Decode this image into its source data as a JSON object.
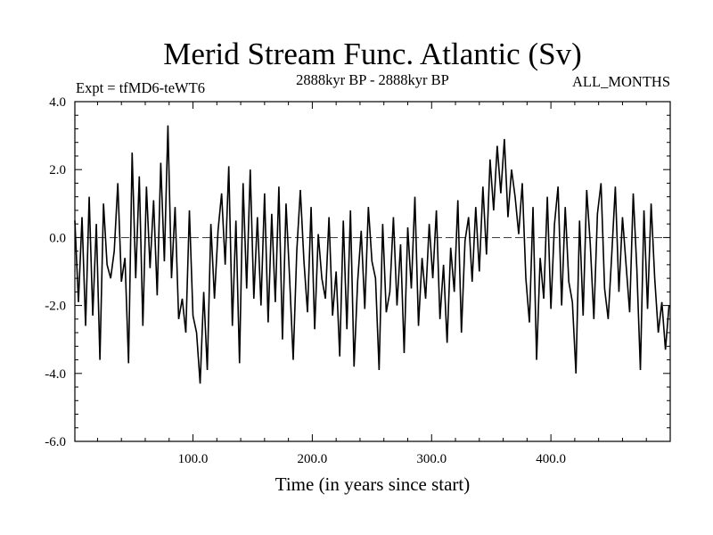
{
  "chart_data": {
    "type": "line",
    "title": "Merid Stream Func. Atlantic (Sv)",
    "subtitle_left": "Expt = tfMD6-teWT6",
    "subtitle_center": "2888kyr BP - 2888kyr BP",
    "subtitle_right": "ALL_MONTHS",
    "xlabel": "Time (in years since start)",
    "ylabel": "",
    "xlim": [
      1,
      500
    ],
    "ylim": [
      -6.0,
      4.0
    ],
    "x_ticks": [
      100,
      200,
      300,
      400
    ],
    "x_tick_labels": [
      "100.0",
      "200.0",
      "300.0",
      "400.0"
    ],
    "y_ticks": [
      -6,
      -4,
      -2,
      0,
      2,
      4
    ],
    "y_tick_labels": [
      "-6.0",
      "-4.0",
      "-2.0",
      "0.0",
      "2.0",
      "4.0"
    ],
    "zero_line": true,
    "grid": false,
    "series": [
      {
        "name": "Merid Stream Func. Atlantic",
        "x": [
          1,
          4,
          7,
          10,
          13,
          16,
          19,
          22,
          25,
          28,
          31,
          34,
          37,
          40,
          43,
          46,
          49,
          52,
          55,
          58,
          61,
          64,
          67,
          70,
          73,
          76,
          79,
          82,
          85,
          88,
          91,
          94,
          97,
          100,
          103,
          106,
          109,
          112,
          115,
          118,
          121,
          124,
          127,
          130,
          133,
          136,
          139,
          142,
          145,
          148,
          151,
          154,
          157,
          160,
          163,
          166,
          169,
          172,
          175,
          178,
          181,
          184,
          187,
          190,
          193,
          196,
          199,
          202,
          205,
          208,
          211,
          214,
          217,
          220,
          223,
          226,
          229,
          232,
          235,
          238,
          241,
          244,
          247,
          250,
          253,
          256,
          259,
          262,
          265,
          268,
          271,
          274,
          277,
          280,
          283,
          286,
          289,
          292,
          295,
          298,
          301,
          304,
          307,
          310,
          313,
          316,
          319,
          322,
          325,
          328,
          331,
          334,
          337,
          340,
          343,
          346,
          349,
          352,
          355,
          358,
          361,
          364,
          367,
          370,
          373,
          376,
          379,
          382,
          385,
          388,
          391,
          394,
          397,
          400,
          403,
          406,
          409,
          412,
          415,
          418,
          421,
          424,
          427,
          430,
          433,
          436,
          439,
          442,
          445,
          448,
          451,
          454,
          457,
          460,
          463,
          466,
          469,
          472,
          475,
          478,
          481,
          484,
          487,
          490,
          493,
          496,
          499
        ],
        "values": [
          0.5,
          -1.9,
          0.6,
          -2.6,
          1.2,
          -2.3,
          0.4,
          -3.6,
          1.0,
          -0.8,
          -1.2,
          -0.4,
          1.6,
          -1.3,
          -0.6,
          -3.7,
          2.5,
          -1.2,
          1.8,
          -2.6,
          1.5,
          -0.9,
          1.1,
          -1.7,
          2.2,
          -0.7,
          3.3,
          -1.2,
          0.9,
          -2.4,
          -1.8,
          -2.8,
          0.8,
          -2.3,
          -2.8,
          -4.3,
          -1.6,
          -3.9,
          0.4,
          -1.8,
          0.2,
          1.3,
          -0.8,
          2.1,
          -2.6,
          0.5,
          -3.7,
          1.6,
          -1.5,
          2.0,
          -1.8,
          0.6,
          -2.0,
          1.3,
          -2.5,
          0.7,
          -1.9,
          1.5,
          -3.0,
          1.0,
          -1.2,
          -3.6,
          -0.4,
          1.4,
          -0.7,
          -2.2,
          0.9,
          -2.7,
          0.1,
          -1.2,
          -1.8,
          0.6,
          -2.3,
          -1.0,
          -3.5,
          0.5,
          -2.7,
          0.8,
          -3.8,
          -1.3,
          0.2,
          -2.1,
          0.9,
          -0.7,
          -1.2,
          -3.9,
          0.4,
          -2.2,
          -1.6,
          0.6,
          -2.0,
          -0.2,
          -3.4,
          0.3,
          -1.5,
          1.2,
          -2.6,
          -0.6,
          -1.8,
          0.4,
          -1.2,
          0.8,
          -2.4,
          -0.8,
          -3.1,
          -0.3,
          -1.6,
          1.1,
          -2.8,
          -0.1,
          0.6,
          -1.3,
          0.9,
          -1.0,
          1.5,
          -0.5,
          2.3,
          0.8,
          2.7,
          1.3,
          2.9,
          0.6,
          2.0,
          1.2,
          0.1,
          1.6,
          -1.2,
          -2.5,
          0.9,
          -3.6,
          -0.6,
          -1.8,
          1.2,
          -2.1,
          0.4,
          1.5,
          -2.0,
          0.9,
          -1.3,
          -1.9,
          -4.0,
          0.5,
          -2.3,
          1.4,
          -0.2,
          -2.4,
          0.7,
          1.6,
          -1.5,
          -2.4,
          -0.5,
          1.5,
          -1.6,
          0.6,
          -0.8,
          -2.2,
          1.3,
          -0.9,
          -3.9,
          0.8,
          -2.1,
          1.0,
          -1.2,
          -2.8,
          -1.9,
          -3.3,
          -2.0
        ]
      }
    ]
  }
}
